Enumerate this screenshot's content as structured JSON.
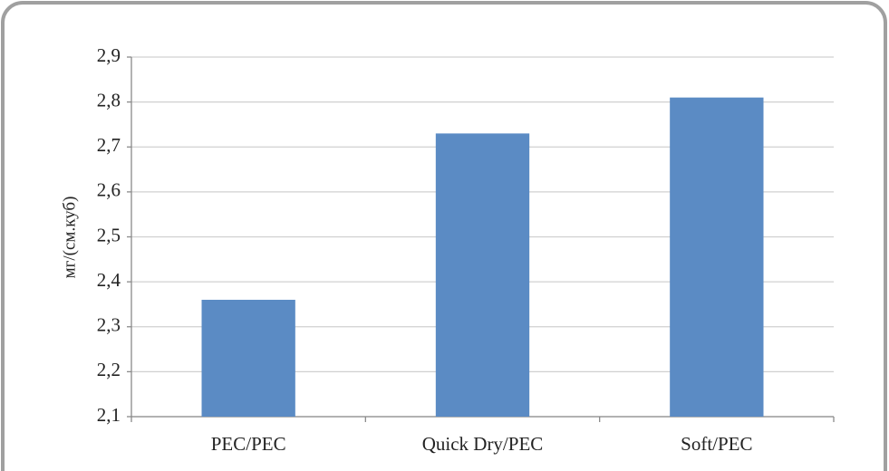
{
  "chart_data": {
    "type": "bar",
    "y_label": "мг/(см.куб)",
    "categories": [
      "PEC/PEC",
      "Quick Dry/PEC",
      "Soft/PEC"
    ],
    "values": [
      2.36,
      2.73,
      2.81
    ],
    "color": "#5b8bc4",
    "ylim": [
      2.1,
      2.9
    ],
    "yticks": [
      {
        "value": 2.1,
        "label": "2,1"
      },
      {
        "value": 2.2,
        "label": "2,2"
      },
      {
        "value": 2.3,
        "label": "2,3"
      },
      {
        "value": 2.4,
        "label": "2,4"
      },
      {
        "value": 2.5,
        "label": "2,5"
      },
      {
        "value": 2.6,
        "label": "2,6"
      },
      {
        "value": 2.7,
        "label": "2,7"
      },
      {
        "value": 2.8,
        "label": "2,8"
      },
      {
        "value": 2.9,
        "label": "2,9"
      }
    ],
    "grid": true
  }
}
